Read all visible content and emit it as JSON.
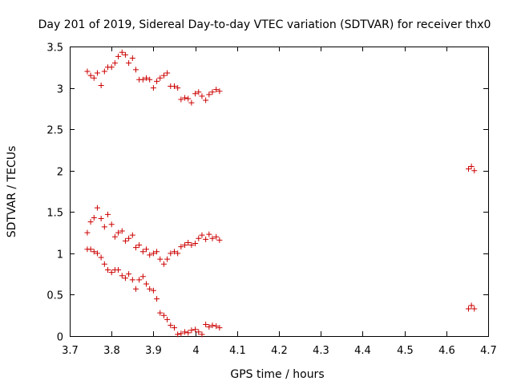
{
  "chart_data": {
    "type": "scatter",
    "title": "Day 201 of 2019, Sidereal Day-to-day VTEC variation (SDTVAR) for receiver thx0",
    "xlabel": "GPS time / hours",
    "ylabel": "SDTVAR / TECUs",
    "xlim": [
      3.7,
      4.7
    ],
    "ylim": [
      0,
      3.5
    ],
    "xticks": [
      3.7,
      3.8,
      3.9,
      4.0,
      4.1,
      4.2,
      4.3,
      4.4,
      4.5,
      4.6,
      4.7
    ],
    "xtick_labels": [
      "3.7",
      "3.8",
      "3.9",
      "4",
      "4.1",
      "4.2",
      "4.3",
      "4.4",
      "4.5",
      "4.6",
      "4.7"
    ],
    "yticks": [
      0,
      0.5,
      1,
      1.5,
      2,
      2.5,
      3,
      3.5
    ],
    "ytick_labels": [
      "0",
      "0.5",
      "1",
      "1.5",
      "2",
      "2.5",
      "3",
      "3.5"
    ],
    "grid": false,
    "marker": "+",
    "color": "#cc0000",
    "series": [
      {
        "name": "upper",
        "x": [
          3.742,
          3.75,
          3.758,
          3.766,
          3.775,
          3.783,
          3.791,
          3.8,
          3.808,
          3.816,
          3.825,
          3.833,
          3.841,
          3.85,
          3.858,
          3.866,
          3.875,
          3.883,
          3.891,
          3.9,
          3.908,
          3.916,
          3.925,
          3.933,
          3.941,
          3.95,
          3.958,
          3.966,
          3.975,
          3.983,
          3.991,
          4.0,
          4.008,
          4.016,
          4.025,
          4.033,
          4.041,
          4.05,
          4.058
        ],
        "y": [
          3.2,
          3.15,
          3.12,
          3.18,
          3.03,
          3.2,
          3.25,
          3.25,
          3.3,
          3.38,
          3.43,
          3.4,
          3.3,
          3.36,
          3.22,
          3.1,
          3.1,
          3.12,
          3.1,
          3.0,
          3.08,
          3.12,
          3.15,
          3.18,
          3.02,
          3.02,
          3.0,
          2.86,
          2.88,
          2.87,
          2.82,
          2.93,
          2.95,
          2.9,
          2.85,
          2.92,
          2.95,
          2.98,
          2.96
        ]
      },
      {
        "name": "middle",
        "x": [
          3.742,
          3.75,
          3.758,
          3.766,
          3.775,
          3.783,
          3.791,
          3.8,
          3.808,
          3.816,
          3.825,
          3.833,
          3.841,
          3.85,
          3.858,
          3.866,
          3.875,
          3.883,
          3.891,
          3.9,
          3.908,
          3.916,
          3.925,
          3.933,
          3.941,
          3.95,
          3.958,
          3.966,
          3.975,
          3.983,
          3.991,
          4.0,
          4.008,
          4.016,
          4.025,
          4.033,
          4.041,
          4.05,
          4.058
        ],
        "y": [
          1.25,
          1.38,
          1.43,
          1.55,
          1.42,
          1.32,
          1.47,
          1.35,
          1.2,
          1.25,
          1.27,
          1.15,
          1.18,
          1.22,
          1.07,
          1.1,
          1.02,
          1.05,
          0.98,
          1.0,
          1.02,
          0.93,
          0.87,
          0.93,
          1.0,
          1.02,
          1.0,
          1.08,
          1.1,
          1.13,
          1.1,
          1.12,
          1.18,
          1.22,
          1.17,
          1.23,
          1.18,
          1.2,
          1.16
        ]
      },
      {
        "name": "lower",
        "x": [
          3.742,
          3.75,
          3.758,
          3.766,
          3.775,
          3.783,
          3.791,
          3.8,
          3.808,
          3.816,
          3.825,
          3.833,
          3.841,
          3.85,
          3.858,
          3.866,
          3.875,
          3.883,
          3.891,
          3.9,
          3.908,
          3.916,
          3.925,
          3.933,
          3.941,
          3.95,
          3.958,
          3.966,
          3.975,
          3.983,
          3.991,
          4.0,
          4.008,
          4.016,
          4.025,
          4.033,
          4.041,
          4.05,
          4.058
        ],
        "y": [
          1.05,
          1.05,
          1.02,
          1.0,
          0.95,
          0.87,
          0.8,
          0.77,
          0.8,
          0.8,
          0.73,
          0.7,
          0.75,
          0.68,
          0.57,
          0.68,
          0.72,
          0.63,
          0.57,
          0.55,
          0.45,
          0.28,
          0.25,
          0.2,
          0.13,
          0.1,
          0.02,
          0.03,
          0.05,
          0.04,
          0.07,
          0.08,
          0.05,
          0.02,
          0.14,
          0.11,
          0.13,
          0.12,
          0.1
        ]
      },
      {
        "name": "late-upper",
        "x": [
          4.653,
          4.66,
          4.667
        ],
        "y": [
          2.02,
          2.05,
          2.0
        ]
      },
      {
        "name": "late-lower",
        "x": [
          4.653,
          4.66,
          4.667
        ],
        "y": [
          0.33,
          0.37,
          0.33
        ]
      }
    ]
  }
}
